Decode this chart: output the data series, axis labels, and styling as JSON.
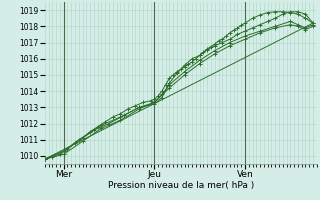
{
  "xlabel": "Pression niveau de la mer( hPa )",
  "background_color": "#d4ede6",
  "grid_color": "#b0d4c8",
  "line_color": "#2d6e2d",
  "vline_color": "#4a6a4a",
  "ylim": [
    1009.5,
    1019.5
  ],
  "xlim": [
    0,
    72
  ],
  "yticks": [
    1010,
    1011,
    1012,
    1013,
    1014,
    1015,
    1016,
    1017,
    1018,
    1019
  ],
  "xtick_positions": [
    5,
    29,
    53
  ],
  "xtick_labels": [
    "Mer",
    "Jeu",
    "Ven"
  ],
  "vlines": [
    5,
    29,
    53
  ],
  "series_with_markers": [
    [
      0,
      1009.8,
      2,
      1009.95,
      4,
      1010.1,
      6,
      1010.4,
      8,
      1010.8,
      10,
      1011.1,
      12,
      1011.5,
      14,
      1011.8,
      16,
      1012.1,
      18,
      1012.4,
      20,
      1012.6,
      22,
      1012.9,
      24,
      1013.1,
      26,
      1013.3,
      28,
      1013.4,
      29,
      1013.5,
      30,
      1013.7,
      31,
      1014.0,
      32,
      1014.4,
      33,
      1014.8,
      34,
      1015.0,
      35,
      1015.2,
      36,
      1015.35,
      37,
      1015.5,
      38,
      1015.65,
      39,
      1015.8,
      40,
      1016.0,
      41,
      1016.2,
      42,
      1016.4,
      43,
      1016.6,
      44,
      1016.75,
      45,
      1016.9,
      46,
      1017.1,
      47,
      1017.2,
      48,
      1017.4,
      49,
      1017.6,
      50,
      1017.75,
      51,
      1017.9,
      52,
      1018.05,
      53,
      1018.2,
      55,
      1018.5,
      57,
      1018.7,
      59,
      1018.85,
      61,
      1018.9,
      63,
      1018.9,
      65,
      1018.85,
      67,
      1018.75,
      69,
      1018.5,
      71,
      1018.2
    ],
    [
      0,
      1009.8,
      5,
      1010.3,
      9,
      1011.0,
      13,
      1011.6,
      17,
      1012.0,
      21,
      1012.5,
      25,
      1013.0,
      29,
      1013.2,
      31,
      1013.6,
      33,
      1014.5,
      35,
      1015.1,
      37,
      1015.6,
      39,
      1016.0,
      41,
      1016.2,
      43,
      1016.55,
      45,
      1016.8,
      47,
      1017.0,
      49,
      1017.2,
      51,
      1017.5,
      53,
      1017.7,
      55,
      1017.9,
      57,
      1018.1,
      59,
      1018.3,
      61,
      1018.5,
      63,
      1018.75,
      65,
      1018.9,
      67,
      1018.9,
      69,
      1018.75,
      71,
      1018.2
    ],
    [
      0,
      1009.8,
      5,
      1010.3,
      10,
      1011.1,
      15,
      1011.9,
      20,
      1012.4,
      25,
      1013.0,
      29,
      1013.3,
      31,
      1013.8,
      33,
      1014.4,
      37,
      1015.2,
      41,
      1015.9,
      45,
      1016.5,
      49,
      1017.0,
      53,
      1017.4,
      57,
      1017.7,
      61,
      1018.0,
      65,
      1018.3,
      67,
      1018.1,
      69,
      1017.9,
      71,
      1018.1
    ],
    [
      0,
      1009.8,
      5,
      1010.1,
      10,
      1010.9,
      15,
      1011.7,
      20,
      1012.2,
      25,
      1012.9,
      29,
      1013.3,
      33,
      1014.2,
      37,
      1015.0,
      41,
      1015.7,
      45,
      1016.3,
      49,
      1016.8,
      53,
      1017.2,
      57,
      1017.6,
      61,
      1017.9,
      65,
      1018.1,
      67,
      1018.0,
      69,
      1017.8,
      71,
      1018.0
    ]
  ],
  "series_no_markers": [
    [
      0,
      1009.8,
      71,
      1018.2
    ]
  ]
}
